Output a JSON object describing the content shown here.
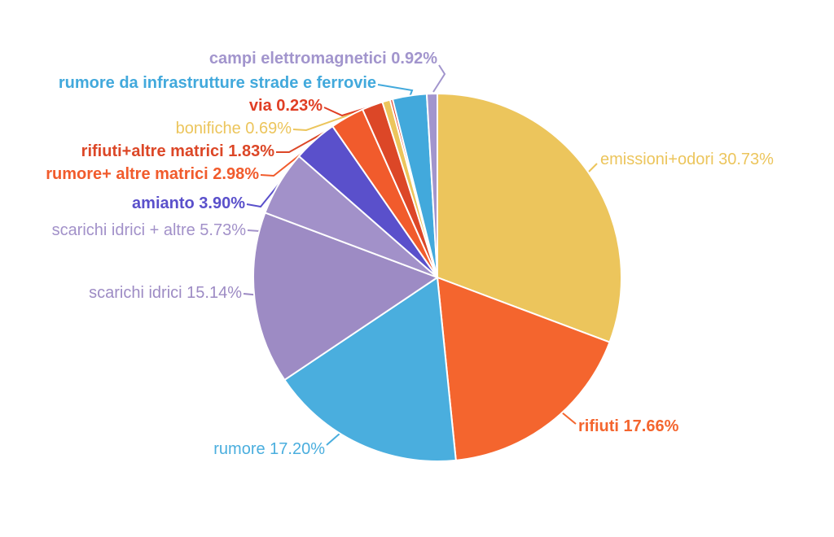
{
  "chart_data": {
    "type": "pie",
    "title": "",
    "background": "#ffffff",
    "slice_border_color": "#ffffff",
    "start_angle_deg_clockwise_from_top": 0,
    "slices": [
      {
        "label": "emissioni+odori",
        "value": 30.73,
        "display": "emissioni+odori 30.73%",
        "color": "#ecc55c",
        "bold": false
      },
      {
        "label": "rifiuti",
        "value": 17.66,
        "display": "rifiuti 17.66%",
        "color": "#f4652e",
        "bold": true
      },
      {
        "label": "rumore",
        "value": 17.2,
        "display": "rumore 17.20%",
        "color": "#4aaede",
        "bold": false
      },
      {
        "label": "scarichi idrici",
        "value": 15.14,
        "display": "scarichi idrici 15.14%",
        "color": "#9d8bc4",
        "bold": false
      },
      {
        "label": "scarichi idrici + altre",
        "value": 5.73,
        "display": "scarichi idrici + altre 5.73%",
        "color": "#a291c9",
        "bold": false
      },
      {
        "label": "amianto",
        "value": 3.9,
        "display": "amianto 3.90%",
        "color": "#5a50cb",
        "bold": true
      },
      {
        "label": "rumore+ altre matrici",
        "value": 2.98,
        "display": "rumore+ altre matrici 2.98%",
        "color": "#f15b2c",
        "bold": true
      },
      {
        "label": "rifiuti+altre matrici",
        "value": 1.83,
        "display": "rifiuti+altre matrici 1.83%",
        "color": "#dc4727",
        "bold": true
      },
      {
        "label": "bonifiche",
        "value": 0.69,
        "display": "bonifiche 0.69%",
        "color": "#ecc55c",
        "bold": false
      },
      {
        "label": "via",
        "value": 0.23,
        "display": "via 0.23%",
        "color": "#e03e24",
        "bold": true
      },
      {
        "label": "rumore da infrastrutture strade e ferrovie",
        "value": 2.99,
        "value_hidden": true,
        "display": "rumore da infrastrutture strade e ferrovie",
        "color": "#42a9dc",
        "bold": true
      },
      {
        "label": "campi elettromagnetici",
        "value": 0.92,
        "display": "campi elettromagnetici 0.92%",
        "color": "#a295cd",
        "bold": true
      }
    ]
  }
}
